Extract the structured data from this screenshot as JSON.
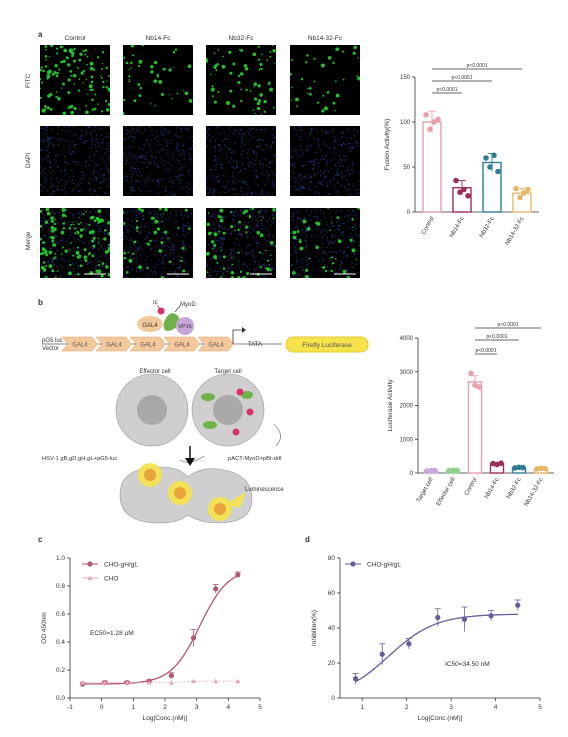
{
  "panel_labels": {
    "a": "a",
    "b": "b",
    "c": "c",
    "d": "d"
  },
  "micrographs": {
    "columns": [
      "Control",
      "Nb14-Fc",
      "Nb32-Fc",
      "Nb14-32-Fc"
    ],
    "rows": [
      "FITC",
      "DAPI",
      "Merge"
    ],
    "colors": {
      "fitc": "#22c02a",
      "dapi": "#2a3f9e",
      "background": "#000000"
    }
  },
  "luciferase_schematic": {
    "icon_ic": "Ic",
    "myod": "MyoD",
    "gal4_protein": "GAL4",
    "vp16": "VP16",
    "vector_label_1": "pG5 luc",
    "vector_label_2": "Vector",
    "gal4_boxes": [
      "GAL4",
      "GAL4",
      "GAL4",
      "GAL4",
      "GAL4"
    ],
    "tata": "TATA",
    "reporter": "Firefly Luciferase",
    "effector_cell": "Effector cell",
    "target_cell": "Target cell",
    "plus": "+",
    "effector_plasmid": "HSV-1 gB,gD,gH,gL+pG5-luc",
    "target_plasmid": "pACT-MyoD+pBI-ddI",
    "luminescence": "Luminescence",
    "colors": {
      "gal4": "#f3c99c",
      "myod": "#6fb24a",
      "vp16": "#c9a6d9",
      "ic": "#d8336a",
      "reporter": "#f6e24a",
      "cell": "#cfcfcf"
    }
  },
  "chart_data": [
    {
      "id": "fusion-activity",
      "type": "bar",
      "title": "",
      "xlabel": "",
      "ylabel": "Fusion Activity(%)",
      "ylim": [
        0,
        150
      ],
      "yticks": [
        "0",
        "50",
        "100",
        "150"
      ],
      "categories": [
        "Control",
        "Nb14-Fc",
        "Nb32-Fc",
        "Nb14-32-Fc"
      ],
      "values": [
        100,
        27,
        55,
        21
      ],
      "errors": [
        12,
        8,
        10,
        5
      ],
      "points": [
        [
          108,
          92,
          100,
          103
        ],
        [
          35,
          22,
          25,
          18
        ],
        [
          60,
          50,
          63,
          45
        ],
        [
          26,
          16,
          21,
          25
        ]
      ],
      "colors": [
        "#e8a0ae",
        "#9b2e5a",
        "#2f7d95",
        "#e8b765"
      ],
      "significance": [
        "p<0.0001",
        "p<0.0001",
        "p<0.0001"
      ]
    },
    {
      "id": "luciferase-activity",
      "type": "bar",
      "title": "",
      "xlabel": "",
      "ylabel": "Luciferase Activity",
      "ylim": [
        0,
        4000
      ],
      "yticks": [
        "0",
        "1000",
        "2000",
        "3000",
        "4000"
      ],
      "categories": [
        "Target cell",
        "Effector cell",
        "Control",
        "Nb14-Fc",
        "Nb32-Fc",
        "Nb14-32-Fc"
      ],
      "values": [
        70,
        80,
        2700,
        270,
        160,
        130
      ],
      "errors": [
        15,
        15,
        180,
        30,
        20,
        15
      ],
      "points": [
        [
          60,
          75,
          70
        ],
        [
          70,
          85,
          80
        ],
        [
          2950,
          2600,
          2550
        ],
        [
          280,
          250,
          290
        ],
        [
          150,
          170,
          160
        ],
        [
          120,
          140,
          130
        ]
      ],
      "colors": [
        "#c9a6d9",
        "#8fcf8a",
        "#e8a0ae",
        "#9b2e5a",
        "#2f7d95",
        "#e8b765"
      ],
      "significance": [
        "p<0.0001",
        "p<0.0001",
        "p<0.0001"
      ]
    },
    {
      "id": "od-curve",
      "type": "line",
      "title": "",
      "xlabel": "Log[Conc.(nM)]",
      "ylabel": "OD 450nm",
      "xlim": [
        -1,
        5
      ],
      "ylim": [
        0.0,
        1.0
      ],
      "xticks": [
        "-1",
        "0",
        "1",
        "2",
        "3",
        "4",
        "5"
      ],
      "yticks": [
        "0.0",
        "0.2",
        "0.4",
        "0.6",
        "0.8",
        "1.0"
      ],
      "series": [
        {
          "name": "CHO-gH/gL",
          "color": "#b5566f",
          "x": [
            -0.6,
            0.1,
            0.8,
            1.5,
            2.2,
            2.9,
            3.6,
            4.3
          ],
          "y": [
            0.1,
            0.11,
            0.11,
            0.12,
            0.16,
            0.43,
            0.78,
            0.88
          ],
          "err": [
            0.01,
            0.01,
            0.01,
            0.01,
            0.02,
            0.06,
            0.03,
            0.02
          ]
        },
        {
          "name": "CHO",
          "color": "#e8a6b8",
          "x": [
            -0.6,
            0.1,
            0.8,
            1.5,
            2.2,
            2.9,
            3.6,
            4.3
          ],
          "y": [
            0.11,
            0.11,
            0.11,
            0.11,
            0.11,
            0.12,
            0.12,
            0.12
          ]
        }
      ],
      "annotation": "EC50=1.28 μM"
    },
    {
      "id": "inhibition-curve",
      "type": "line",
      "title": "",
      "xlabel": "Log[Conc.(nM)]",
      "ylabel": "Inhibition(%)",
      "xlim": [
        0.5,
        5
      ],
      "ylim": [
        0,
        80
      ],
      "xticks": [
        "1",
        "2",
        "3",
        "4",
        "5"
      ],
      "yticks": [
        "0",
        "20",
        "40",
        "60",
        "80"
      ],
      "series": [
        {
          "name": "CHO-gH/gL",
          "color": "#6a5a9c",
          "x": [
            0.85,
            1.45,
            2.05,
            2.7,
            3.3,
            3.9,
            4.5
          ],
          "y": [
            11,
            25,
            31,
            46,
            45,
            47,
            53
          ],
          "err": [
            3,
            6,
            3,
            5,
            7,
            3,
            3
          ]
        }
      ],
      "annotation": "IC50=34.50 nM"
    }
  ]
}
